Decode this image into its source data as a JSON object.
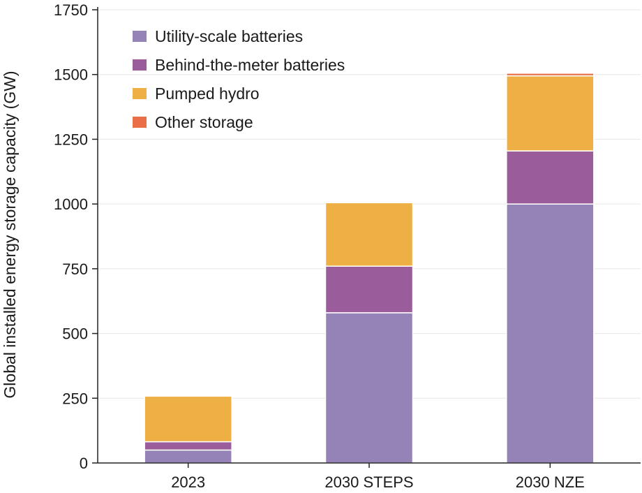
{
  "chart_data": {
    "type": "bar",
    "stacked": true,
    "title": "",
    "xlabel": "",
    "ylabel": "Global installed energy storage capacity (GW)",
    "ylim": [
      0,
      1750
    ],
    "yticks": [
      0,
      250,
      500,
      750,
      1000,
      1250,
      1500,
      1750
    ],
    "grid": true,
    "legend_position": "top-left",
    "categories": [
      "2023",
      "2030 STEPS",
      "2030 NZE"
    ],
    "series": [
      {
        "name": "Utility-scale batteries",
        "color": "#9583b8",
        "values": [
          50,
          580,
          1000
        ]
      },
      {
        "name": "Behind-the-meter batteries",
        "color": "#9b5c9b",
        "values": [
          32,
          180,
          205
        ]
      },
      {
        "name": "Pumped hydro",
        "color": "#eeb044",
        "values": [
          176,
          245,
          290
        ]
      },
      {
        "name": "Other storage",
        "color": "#ea6f47",
        "values": [
          0,
          0,
          10
        ]
      }
    ]
  }
}
